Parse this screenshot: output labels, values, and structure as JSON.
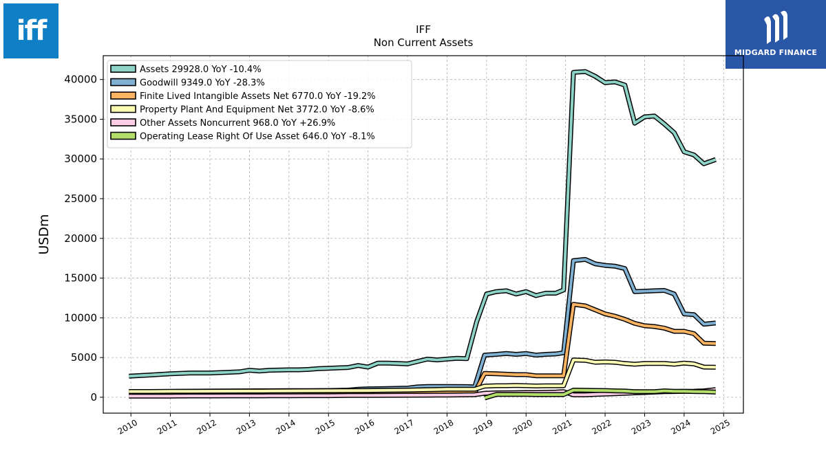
{
  "logos": {
    "left_text": "iff",
    "right_text": "MIDGARD FINANCE"
  },
  "chart_data": {
    "type": "line",
    "title": "IFF",
    "subtitle": "Non Current  Assets",
    "ylabel": "USDm",
    "xlabel": "",
    "xlim": [
      2009.3,
      2025.5
    ],
    "ylim": [
      -2000,
      43000
    ],
    "x_ticks": [
      2010,
      2011,
      2012,
      2013,
      2014,
      2015,
      2016,
      2017,
      2018,
      2019,
      2020,
      2021,
      2022,
      2023,
      2024,
      2025
    ],
    "y_ticks": [
      0,
      5000,
      10000,
      15000,
      20000,
      25000,
      30000,
      35000,
      40000
    ],
    "grid": true,
    "legend_position": "top-left",
    "series": [
      {
        "name": "Assets  29928.0 YoY -10.4%",
        "color": "#8dd3c7",
        "points": [
          [
            2009.95,
            2650
          ],
          [
            2010.5,
            2800
          ],
          [
            2011.0,
            2950
          ],
          [
            2011.5,
            3050
          ],
          [
            2012.0,
            3050
          ],
          [
            2012.5,
            3150
          ],
          [
            2012.75,
            3200
          ],
          [
            2013.0,
            3400
          ],
          [
            2013.25,
            3300
          ],
          [
            2013.5,
            3400
          ],
          [
            2014.0,
            3450
          ],
          [
            2014.25,
            3450
          ],
          [
            2014.5,
            3500
          ],
          [
            2014.75,
            3600
          ],
          [
            2015.0,
            3650
          ],
          [
            2015.25,
            3700
          ],
          [
            2015.5,
            3750
          ],
          [
            2015.75,
            4000
          ],
          [
            2016.0,
            3800
          ],
          [
            2016.25,
            4300
          ],
          [
            2016.5,
            4300
          ],
          [
            2016.75,
            4250
          ],
          [
            2017.0,
            4200
          ],
          [
            2017.25,
            4500
          ],
          [
            2017.5,
            4800
          ],
          [
            2017.75,
            4700
          ],
          [
            2018.0,
            4800
          ],
          [
            2018.25,
            4900
          ],
          [
            2018.5,
            4850
          ],
          [
            2018.75,
            9500
          ],
          [
            2019.0,
            13000
          ],
          [
            2019.25,
            13300
          ],
          [
            2019.5,
            13400
          ],
          [
            2019.75,
            13000
          ],
          [
            2020.0,
            13300
          ],
          [
            2020.25,
            12800
          ],
          [
            2020.5,
            13100
          ],
          [
            2020.75,
            13100
          ],
          [
            2020.95,
            13500
          ],
          [
            2021.2,
            40900
          ],
          [
            2021.5,
            41000
          ],
          [
            2021.75,
            40400
          ],
          [
            2022.0,
            39600
          ],
          [
            2022.25,
            39700
          ],
          [
            2022.5,
            39300
          ],
          [
            2022.75,
            34500
          ],
          [
            2023.0,
            35300
          ],
          [
            2023.25,
            35400
          ],
          [
            2023.5,
            34400
          ],
          [
            2023.75,
            33300
          ],
          [
            2024.0,
            30900
          ],
          [
            2024.25,
            30500
          ],
          [
            2024.5,
            29400
          ],
          [
            2024.8,
            29928
          ]
        ]
      },
      {
        "name": "Goodwill  9349.0 YoY -28.3%",
        "color": "#80b1d3",
        "points": [
          [
            2009.95,
            700
          ],
          [
            2010.5,
            720
          ],
          [
            2011.0,
            730
          ],
          [
            2011.5,
            760
          ],
          [
            2012.0,
            780
          ],
          [
            2012.5,
            790
          ],
          [
            2013.0,
            800
          ],
          [
            2013.5,
            810
          ],
          [
            2014.0,
            830
          ],
          [
            2014.5,
            840
          ],
          [
            2015.0,
            850
          ],
          [
            2015.5,
            900
          ],
          [
            2015.75,
            1000
          ],
          [
            2016.0,
            1050
          ],
          [
            2016.5,
            1100
          ],
          [
            2017.0,
            1150
          ],
          [
            2017.25,
            1300
          ],
          [
            2017.5,
            1350
          ],
          [
            2018.0,
            1350
          ],
          [
            2018.5,
            1340
          ],
          [
            2018.7,
            1300
          ],
          [
            2018.95,
            5300
          ],
          [
            2019.25,
            5400
          ],
          [
            2019.5,
            5500
          ],
          [
            2019.75,
            5400
          ],
          [
            2020.0,
            5500
          ],
          [
            2020.25,
            5300
          ],
          [
            2020.5,
            5400
          ],
          [
            2020.75,
            5450
          ],
          [
            2020.95,
            5600
          ],
          [
            2021.2,
            17200
          ],
          [
            2021.5,
            17350
          ],
          [
            2021.75,
            16800
          ],
          [
            2022.0,
            16600
          ],
          [
            2022.25,
            16500
          ],
          [
            2022.5,
            16200
          ],
          [
            2022.75,
            13300
          ],
          [
            2023.0,
            13350
          ],
          [
            2023.25,
            13400
          ],
          [
            2023.5,
            13450
          ],
          [
            2023.75,
            13000
          ],
          [
            2024.0,
            10500
          ],
          [
            2024.25,
            10400
          ],
          [
            2024.5,
            9200
          ],
          [
            2024.8,
            9349
          ]
        ]
      },
      {
        "name": "Finite Lived Intangible Assets Net  6770.0 YoY -19.2%",
        "color": "#fdb462",
        "points": [
          [
            2009.95,
            550
          ],
          [
            2010.5,
            550
          ],
          [
            2011.0,
            560
          ],
          [
            2011.5,
            560
          ],
          [
            2012.0,
            570
          ],
          [
            2012.5,
            570
          ],
          [
            2013.0,
            560
          ],
          [
            2013.5,
            570
          ],
          [
            2014.0,
            560
          ],
          [
            2014.5,
            570
          ],
          [
            2015.0,
            550
          ],
          [
            2015.5,
            540
          ],
          [
            2016.0,
            530
          ],
          [
            2016.5,
            540
          ],
          [
            2017.0,
            550
          ],
          [
            2017.5,
            570
          ],
          [
            2018.0,
            580
          ],
          [
            2018.5,
            580
          ],
          [
            2018.7,
            560
          ],
          [
            2018.95,
            3000
          ],
          [
            2019.25,
            2950
          ],
          [
            2019.5,
            2900
          ],
          [
            2019.75,
            2850
          ],
          [
            2020.0,
            2850
          ],
          [
            2020.25,
            2700
          ],
          [
            2020.5,
            2700
          ],
          [
            2020.75,
            2700
          ],
          [
            2020.95,
            2700
          ],
          [
            2021.2,
            11700
          ],
          [
            2021.5,
            11500
          ],
          [
            2021.75,
            11000
          ],
          [
            2022.0,
            10500
          ],
          [
            2022.25,
            10200
          ],
          [
            2022.5,
            9800
          ],
          [
            2022.75,
            9300
          ],
          [
            2023.0,
            9000
          ],
          [
            2023.25,
            8900
          ],
          [
            2023.5,
            8700
          ],
          [
            2023.75,
            8300
          ],
          [
            2024.0,
            8300
          ],
          [
            2024.25,
            8000
          ],
          [
            2024.5,
            6800
          ],
          [
            2024.8,
            6770
          ]
        ]
      },
      {
        "name": "Property Plant And Equipment Net  3772.0 YoY -8.6%",
        "color": "#ffffb3",
        "points": [
          [
            2009.95,
            730
          ],
          [
            2010.5,
            730
          ],
          [
            2011.0,
            740
          ],
          [
            2011.5,
            750
          ],
          [
            2012.0,
            760
          ],
          [
            2012.5,
            770
          ],
          [
            2013.0,
            780
          ],
          [
            2013.5,
            790
          ],
          [
            2014.0,
            800
          ],
          [
            2014.5,
            810
          ],
          [
            2015.0,
            820
          ],
          [
            2015.5,
            830
          ],
          [
            2016.0,
            850
          ],
          [
            2016.5,
            870
          ],
          [
            2017.0,
            900
          ],
          [
            2017.5,
            950
          ],
          [
            2018.0,
            1000
          ],
          [
            2018.5,
            1000
          ],
          [
            2018.7,
            1000
          ],
          [
            2018.95,
            1400
          ],
          [
            2019.25,
            1450
          ],
          [
            2019.5,
            1450
          ],
          [
            2019.75,
            1480
          ],
          [
            2020.0,
            1450
          ],
          [
            2020.25,
            1420
          ],
          [
            2020.5,
            1440
          ],
          [
            2020.75,
            1440
          ],
          [
            2020.95,
            1450
          ],
          [
            2021.2,
            4700
          ],
          [
            2021.5,
            4650
          ],
          [
            2021.75,
            4400
          ],
          [
            2022.0,
            4450
          ],
          [
            2022.25,
            4400
          ],
          [
            2022.5,
            4250
          ],
          [
            2022.75,
            4150
          ],
          [
            2023.0,
            4250
          ],
          [
            2023.25,
            4250
          ],
          [
            2023.5,
            4250
          ],
          [
            2023.75,
            4150
          ],
          [
            2024.0,
            4300
          ],
          [
            2024.25,
            4200
          ],
          [
            2024.5,
            3800
          ],
          [
            2024.8,
            3772
          ]
        ]
      },
      {
        "name": "Other Assets Noncurrent  968.0 YoY +26.9%",
        "color": "#fccde5",
        "points": [
          [
            2009.95,
            150
          ],
          [
            2010.5,
            150
          ],
          [
            2011.0,
            150
          ],
          [
            2011.5,
            160
          ],
          [
            2012.0,
            160
          ],
          [
            2012.5,
            170
          ],
          [
            2013.0,
            170
          ],
          [
            2013.5,
            180
          ],
          [
            2014.0,
            190
          ],
          [
            2014.5,
            200
          ],
          [
            2015.0,
            200
          ],
          [
            2015.5,
            220
          ],
          [
            2016.0,
            230
          ],
          [
            2016.5,
            240
          ],
          [
            2017.0,
            250
          ],
          [
            2017.5,
            260
          ],
          [
            2018.0,
            280
          ],
          [
            2018.5,
            300
          ],
          [
            2018.7,
            320
          ],
          [
            2018.95,
            500
          ],
          [
            2019.25,
            550
          ],
          [
            2019.5,
            560
          ],
          [
            2019.75,
            580
          ],
          [
            2020.0,
            600
          ],
          [
            2020.25,
            600
          ],
          [
            2020.5,
            620
          ],
          [
            2020.75,
            650
          ],
          [
            2020.95,
            700
          ],
          [
            2021.2,
            300
          ],
          [
            2021.5,
            300
          ],
          [
            2021.75,
            350
          ],
          [
            2022.0,
            400
          ],
          [
            2022.25,
            450
          ],
          [
            2022.5,
            500
          ],
          [
            2022.75,
            550
          ],
          [
            2023.0,
            600
          ],
          [
            2023.25,
            650
          ],
          [
            2023.5,
            700
          ],
          [
            2023.75,
            720
          ],
          [
            2024.0,
            750
          ],
          [
            2024.25,
            760
          ],
          [
            2024.5,
            800
          ],
          [
            2024.8,
            968
          ]
        ]
      },
      {
        "name": "Operating Lease Right Of Use Asset  646.0 YoY -8.1%",
        "color": "#b3de69",
        "points": [
          [
            2018.95,
            -100
          ],
          [
            2019.25,
            350
          ],
          [
            2019.5,
            350
          ],
          [
            2019.75,
            350
          ],
          [
            2020.0,
            350
          ],
          [
            2020.25,
            340
          ],
          [
            2020.5,
            340
          ],
          [
            2020.75,
            340
          ],
          [
            2020.95,
            340
          ],
          [
            2021.2,
            900
          ],
          [
            2021.5,
            880
          ],
          [
            2021.75,
            860
          ],
          [
            2022.0,
            850
          ],
          [
            2022.25,
            800
          ],
          [
            2022.5,
            780
          ],
          [
            2022.75,
            700
          ],
          [
            2023.0,
            700
          ],
          [
            2023.25,
            700
          ],
          [
            2023.5,
            800
          ],
          [
            2023.75,
            750
          ],
          [
            2024.0,
            750
          ],
          [
            2024.25,
            720
          ],
          [
            2024.5,
            700
          ],
          [
            2024.8,
            646
          ]
        ]
      }
    ]
  }
}
